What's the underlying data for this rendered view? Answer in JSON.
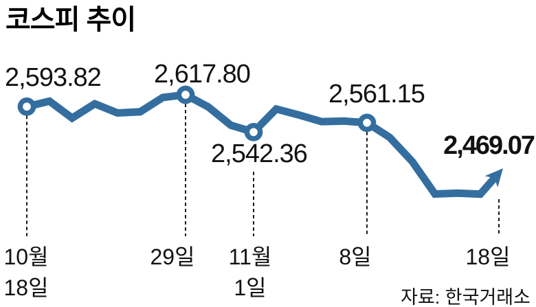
{
  "title": "코스피 추이",
  "source_label": "자료: 한국거래소",
  "colors": {
    "line": "#346e9f",
    "text": "#121212",
    "title": "#000000",
    "dash": "#1a1a1a",
    "background": "#ffffff"
  },
  "chart_data": {
    "type": "line",
    "title": "코스피 추이",
    "source": "자료: 한국거래소",
    "series_name": "KOSPI",
    "x_tick_labels": [
      "10월 18일",
      "29일",
      "11월 1일",
      "8일",
      "18일"
    ],
    "values": [
      2593.82,
      2604.9,
      2570.7,
      2599.6,
      2581.0,
      2583.3,
      2612.4,
      2617.8,
      2593.3,
      2556.2,
      2542.36,
      2589.0,
      2576.9,
      2563.5,
      2564.6,
      2561.15,
      2531.7,
      2482.6,
      2417.1,
      2418.9,
      2416.9,
      2469.07
    ],
    "labeled_points": [
      {
        "index": 0,
        "label": "2,593.82",
        "value": 2593.82,
        "tick": [
          "10월",
          "18일"
        ]
      },
      {
        "index": 7,
        "label": "2,617.80",
        "value": 2617.8,
        "tick": [
          "29일"
        ]
      },
      {
        "index": 10,
        "label": "2,542.36",
        "value": 2542.36,
        "tick": [
          "11월",
          "1일"
        ]
      },
      {
        "index": 15,
        "label": "2,561.15",
        "value": 2561.15,
        "tick": [
          "8일"
        ]
      },
      {
        "index": 21,
        "label": "2,469.07",
        "value": 2469.07,
        "tick": [
          "18일"
        ],
        "arrow": true
      }
    ],
    "ylim": [
      2400,
      2650
    ],
    "grid": false,
    "legend": false,
    "marker": "open-circle",
    "line_color": "#346e9f"
  }
}
